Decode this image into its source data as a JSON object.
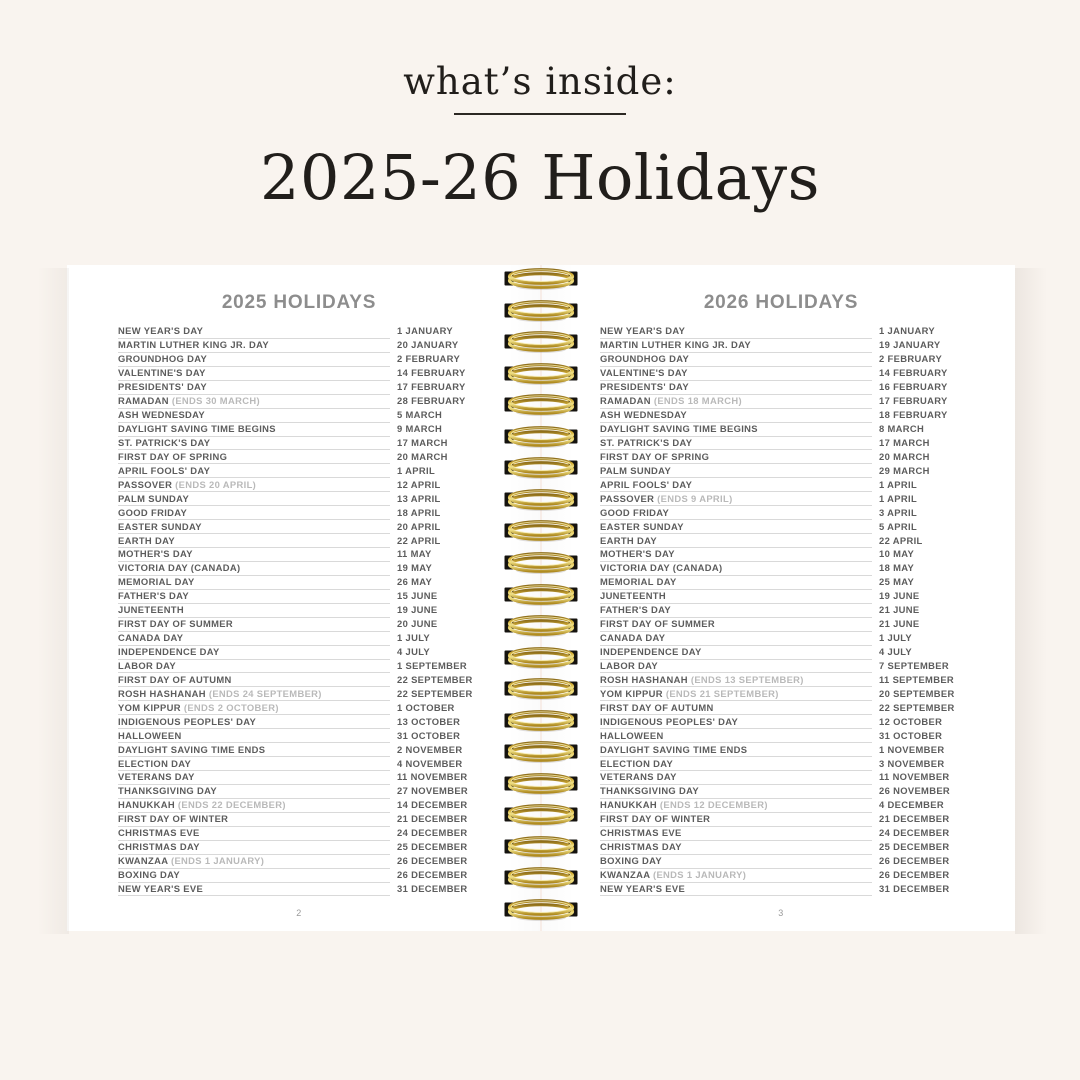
{
  "header": {
    "eyebrow": "what’s inside:",
    "title": "2025-26 Holidays"
  },
  "colors": {
    "background": "#f9f4ef",
    "page": "#ffffff",
    "title_text": "#211e1b",
    "heading_gray": "#8d8d8d",
    "row_text": "#5c5c5c",
    "note_text": "#b9b9b9",
    "rule_line": "#d9d9d9",
    "spiral_gold": "#d4af37",
    "spiral_slot": "#15130f"
  },
  "binding": {
    "ring_count": 21,
    "icon": "spiral-ring-icon"
  },
  "spread": {
    "left_page": {
      "title": "2025 HOLIDAYS",
      "page_number": "2",
      "holidays": [
        {
          "name": "NEW YEAR'S DAY",
          "note": "",
          "date": "1 JANUARY"
        },
        {
          "name": "MARTIN LUTHER KING JR. DAY",
          "note": "",
          "date": "20 JANUARY"
        },
        {
          "name": "GROUNDHOG DAY",
          "note": "",
          "date": "2 FEBRUARY"
        },
        {
          "name": "VALENTINE'S DAY",
          "note": "",
          "date": "14 FEBRUARY"
        },
        {
          "name": "PRESIDENTS' DAY",
          "note": "",
          "date": "17 FEBRUARY"
        },
        {
          "name": "RAMADAN",
          "note": "(ENDS 30 MARCH)",
          "date": "28 FEBRUARY"
        },
        {
          "name": "ASH WEDNESDAY",
          "note": "",
          "date": "5 MARCH"
        },
        {
          "name": "DAYLIGHT SAVING TIME BEGINS",
          "note": "",
          "date": "9 MARCH"
        },
        {
          "name": "ST. PATRICK'S DAY",
          "note": "",
          "date": "17 MARCH"
        },
        {
          "name": "FIRST DAY OF SPRING",
          "note": "",
          "date": "20 MARCH"
        },
        {
          "name": "APRIL FOOLS' DAY",
          "note": "",
          "date": "1 APRIL"
        },
        {
          "name": "PASSOVER",
          "note": "(ENDS 20 APRIL)",
          "date": "12 APRIL"
        },
        {
          "name": "PALM SUNDAY",
          "note": "",
          "date": "13 APRIL"
        },
        {
          "name": "GOOD FRIDAY",
          "note": "",
          "date": "18 APRIL"
        },
        {
          "name": "EASTER SUNDAY",
          "note": "",
          "date": "20 APRIL"
        },
        {
          "name": "EARTH DAY",
          "note": "",
          "date": "22 APRIL"
        },
        {
          "name": "MOTHER'S DAY",
          "note": "",
          "date": "11 MAY"
        },
        {
          "name": "VICTORIA DAY (CANADA)",
          "note": "",
          "date": "19 MAY"
        },
        {
          "name": "MEMORIAL DAY",
          "note": "",
          "date": "26 MAY"
        },
        {
          "name": "FATHER'S DAY",
          "note": "",
          "date": "15 JUNE"
        },
        {
          "name": "JUNETEENTH",
          "note": "",
          "date": "19 JUNE"
        },
        {
          "name": "FIRST DAY OF SUMMER",
          "note": "",
          "date": "20 JUNE"
        },
        {
          "name": "CANADA DAY",
          "note": "",
          "date": "1 JULY"
        },
        {
          "name": "INDEPENDENCE DAY",
          "note": "",
          "date": "4 JULY"
        },
        {
          "name": "LABOR DAY",
          "note": "",
          "date": "1 SEPTEMBER"
        },
        {
          "name": "FIRST DAY OF AUTUMN",
          "note": "",
          "date": "22 SEPTEMBER"
        },
        {
          "name": "ROSH HASHANAH",
          "note": "(ENDS 24 SEPTEMBER)",
          "date": "22 SEPTEMBER"
        },
        {
          "name": "YOM KIPPUR",
          "note": "(ENDS 2 OCTOBER)",
          "date": "1 OCTOBER"
        },
        {
          "name": "INDIGENOUS PEOPLES' DAY",
          "note": "",
          "date": "13 OCTOBER"
        },
        {
          "name": "HALLOWEEN",
          "note": "",
          "date": "31 OCTOBER"
        },
        {
          "name": "DAYLIGHT SAVING TIME ENDS",
          "note": "",
          "date": "2 NOVEMBER"
        },
        {
          "name": "ELECTION DAY",
          "note": "",
          "date": "4 NOVEMBER"
        },
        {
          "name": "VETERANS DAY",
          "note": "",
          "date": "11 NOVEMBER"
        },
        {
          "name": "THANKSGIVING DAY",
          "note": "",
          "date": "27 NOVEMBER"
        },
        {
          "name": "HANUKKAH",
          "note": "(ENDS 22 DECEMBER)",
          "date": "14 DECEMBER"
        },
        {
          "name": "FIRST DAY OF WINTER",
          "note": "",
          "date": "21 DECEMBER"
        },
        {
          "name": "CHRISTMAS EVE",
          "note": "",
          "date": "24 DECEMBER"
        },
        {
          "name": "CHRISTMAS DAY",
          "note": "",
          "date": "25 DECEMBER"
        },
        {
          "name": "KWANZAA",
          "note": "(ENDS 1 JANUARY)",
          "date": "26 DECEMBER"
        },
        {
          "name": "BOXING DAY",
          "note": "",
          "date": "26 DECEMBER"
        },
        {
          "name": "NEW YEAR'S EVE",
          "note": "",
          "date": "31 DECEMBER"
        }
      ]
    },
    "right_page": {
      "title": "2026 HOLIDAYS",
      "page_number": "3",
      "holidays": [
        {
          "name": "NEW YEAR'S DAY",
          "note": "",
          "date": "1 JANUARY"
        },
        {
          "name": "MARTIN LUTHER KING JR. DAY",
          "note": "",
          "date": "19 JANUARY"
        },
        {
          "name": "GROUNDHOG DAY",
          "note": "",
          "date": "2 FEBRUARY"
        },
        {
          "name": "VALENTINE'S DAY",
          "note": "",
          "date": "14 FEBRUARY"
        },
        {
          "name": "PRESIDENTS' DAY",
          "note": "",
          "date": "16 FEBRUARY"
        },
        {
          "name": "RAMADAN",
          "note": "(ENDS 18 MARCH)",
          "date": "17 FEBRUARY"
        },
        {
          "name": "ASH WEDNESDAY",
          "note": "",
          "date": "18 FEBRUARY"
        },
        {
          "name": "DAYLIGHT SAVING TIME BEGINS",
          "note": "",
          "date": "8 MARCH"
        },
        {
          "name": "ST. PATRICK'S DAY",
          "note": "",
          "date": "17 MARCH"
        },
        {
          "name": "FIRST DAY OF SPRING",
          "note": "",
          "date": "20 MARCH"
        },
        {
          "name": "PALM SUNDAY",
          "note": "",
          "date": "29 MARCH"
        },
        {
          "name": "APRIL FOOLS' DAY",
          "note": "",
          "date": "1 APRIL"
        },
        {
          "name": "PASSOVER",
          "note": "(ENDS 9 APRIL)",
          "date": "1 APRIL"
        },
        {
          "name": "GOOD FRIDAY",
          "note": "",
          "date": "3 APRIL"
        },
        {
          "name": "EASTER SUNDAY",
          "note": "",
          "date": "5 APRIL"
        },
        {
          "name": "EARTH DAY",
          "note": "",
          "date": "22 APRIL"
        },
        {
          "name": "MOTHER'S DAY",
          "note": "",
          "date": "10 MAY"
        },
        {
          "name": "VICTORIA DAY (CANADA)",
          "note": "",
          "date": "18 MAY"
        },
        {
          "name": "MEMORIAL DAY",
          "note": "",
          "date": "25 MAY"
        },
        {
          "name": "JUNETEENTH",
          "note": "",
          "date": "19 JUNE"
        },
        {
          "name": "FATHER'S DAY",
          "note": "",
          "date": "21 JUNE"
        },
        {
          "name": "FIRST DAY OF SUMMER",
          "note": "",
          "date": "21 JUNE"
        },
        {
          "name": "CANADA DAY",
          "note": "",
          "date": "1 JULY"
        },
        {
          "name": "INDEPENDENCE DAY",
          "note": "",
          "date": "4 JULY"
        },
        {
          "name": "LABOR DAY",
          "note": "",
          "date": "7 SEPTEMBER"
        },
        {
          "name": "ROSH HASHANAH",
          "note": "(ENDS 13 SEPTEMBER)",
          "date": "11 SEPTEMBER"
        },
        {
          "name": "YOM KIPPUR",
          "note": "(ENDS 21 SEPTEMBER)",
          "date": "20 SEPTEMBER"
        },
        {
          "name": "FIRST DAY OF AUTUMN",
          "note": "",
          "date": "22 SEPTEMBER"
        },
        {
          "name": "INDIGENOUS PEOPLES' DAY",
          "note": "",
          "date": "12 OCTOBER"
        },
        {
          "name": "HALLOWEEN",
          "note": "",
          "date": "31 OCTOBER"
        },
        {
          "name": "DAYLIGHT SAVING TIME ENDS",
          "note": "",
          "date": "1 NOVEMBER"
        },
        {
          "name": "ELECTION DAY",
          "note": "",
          "date": "3 NOVEMBER"
        },
        {
          "name": "VETERANS DAY",
          "note": "",
          "date": "11 NOVEMBER"
        },
        {
          "name": "THANKSGIVING DAY",
          "note": "",
          "date": "26 NOVEMBER"
        },
        {
          "name": "HANUKKAH",
          "note": "(ENDS 12 DECEMBER)",
          "date": "4 DECEMBER"
        },
        {
          "name": "FIRST DAY OF WINTER",
          "note": "",
          "date": "21 DECEMBER"
        },
        {
          "name": "CHRISTMAS EVE",
          "note": "",
          "date": "24 DECEMBER"
        },
        {
          "name": "CHRISTMAS DAY",
          "note": "",
          "date": "25 DECEMBER"
        },
        {
          "name": "BOXING DAY",
          "note": "",
          "date": "26 DECEMBER"
        },
        {
          "name": "KWANZAA",
          "note": "(ENDS 1 JANUARY)",
          "date": "26 DECEMBER"
        },
        {
          "name": "NEW YEAR'S EVE",
          "note": "",
          "date": "31 DECEMBER"
        }
      ]
    }
  }
}
